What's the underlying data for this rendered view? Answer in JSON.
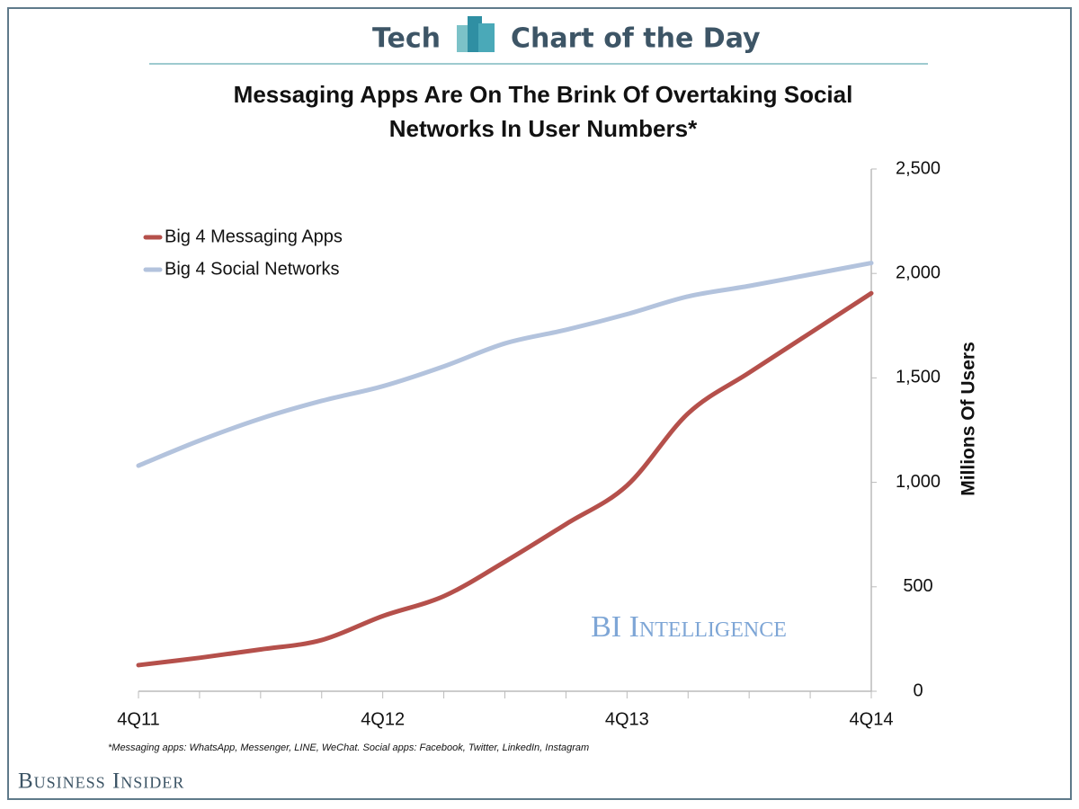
{
  "header": {
    "section": "Tech",
    "label": "Chart of the Day"
  },
  "chart_data": {
    "type": "line",
    "title": "Messaging Apps Are On The Brink Of Overtaking Social Networks In User Numbers*",
    "categories": [
      "4Q11",
      null,
      null,
      null,
      "4Q12",
      null,
      null,
      null,
      "4Q13",
      null,
      null,
      null,
      "4Q14"
    ],
    "series": [
      {
        "name": "Big 4 Messaging Apps",
        "color": "#b5504b",
        "values": [
          125,
          160,
          200,
          245,
          360,
          455,
          620,
          800,
          985,
          1330,
          1525,
          1715,
          1905
        ]
      },
      {
        "name": "Big 4 Social Networks",
        "color": "#b3c3dd",
        "values": [
          1080,
          1200,
          1305,
          1390,
          1460,
          1555,
          1665,
          1730,
          1805,
          1890,
          1940,
          1995,
          2050
        ]
      }
    ],
    "ylim": [
      0,
      2500
    ],
    "yticks": [
      0,
      500,
      {
        "value": 1000,
        "label": "1,000"
      },
      {
        "value": 1500,
        "label": "1,500"
      },
      {
        "value": 2000,
        "label": "2,000"
      },
      {
        "value": 2500,
        "label": "2,500"
      }
    ],
    "ylabel": "Millions Of Users",
    "legend": "top-left",
    "grid": false,
    "watermark": "BI Intelligence",
    "footnote": "*Messaging apps: WhatsApp, Messenger, LINE, WeChat. Social apps: Facebook, Twitter, LinkedIn, Instagram"
  },
  "brand": "Business Insider"
}
